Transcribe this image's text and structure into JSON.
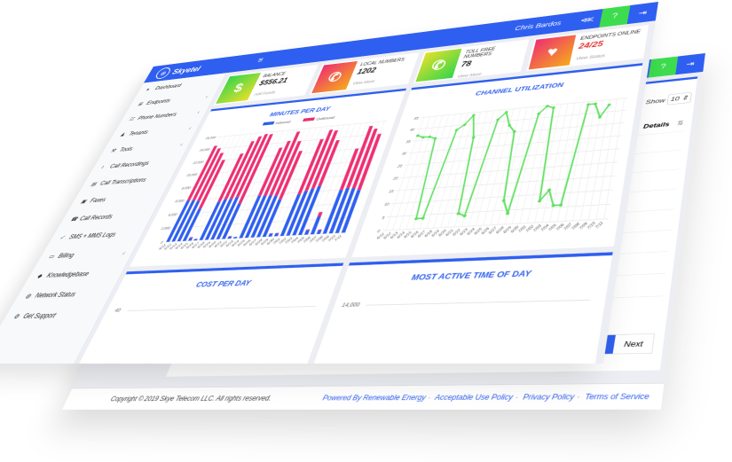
{
  "colors": {
    "brand": "#2f5ff0",
    "inbound": "#2f5ff0",
    "outbound": "#ee2f72",
    "line": "#5ee05e",
    "help": "#3ddc4f"
  },
  "header": {
    "logo": "Skyetel",
    "user": "Chris Bardos",
    "icons": [
      "menu-icon",
      "share-icon",
      "help-icon",
      "logout-icon"
    ],
    "help_label": "?"
  },
  "sidebar": {
    "items": [
      {
        "label": "Dashboard",
        "icon": "▸",
        "chevron": false
      },
      {
        "label": "Endpoints",
        "icon": "⊞",
        "chevron": true
      },
      {
        "label": "Phone Numbers",
        "icon": "☷",
        "chevron": true
      },
      {
        "label": "Tenants",
        "icon": "♟",
        "chevron": true
      },
      {
        "label": "Tools",
        "icon": "⚒",
        "chevron": true
      },
      {
        "label": "Call Recordings",
        "icon": "♪",
        "chevron": false
      },
      {
        "label": "Call Transcriptions",
        "icon": "▤",
        "chevron": false
      },
      {
        "label": "Faxes",
        "icon": "▣",
        "chevron": false
      },
      {
        "label": "Call Records",
        "icon": "☎",
        "chevron": false
      },
      {
        "label": "SMS + MMS Logs",
        "icon": "✓",
        "chevron": false
      },
      {
        "label": "Billing",
        "icon": "▭",
        "chevron": true
      },
      {
        "label": "Knowledgebase",
        "icon": "◆",
        "chevron": false
      },
      {
        "label": "Network Status",
        "icon": "◍",
        "chevron": false
      },
      {
        "label": "Get Support",
        "icon": "⚙",
        "chevron": false
      }
    ]
  },
  "stats": [
    {
      "label": "Balance",
      "value": "$556.21",
      "link": "Add Funds",
      "icon": "$",
      "gradient": [
        "#35d64a",
        "#e6e02a"
      ]
    },
    {
      "label": "Local Numbers",
      "value": "1202",
      "link": "View More",
      "icon": "✆",
      "gradient": [
        "#ee2f72",
        "#f6a91c"
      ]
    },
    {
      "label": "Toll Free Numbers",
      "value": "78",
      "link": "View More",
      "icon": "✆",
      "gradient": [
        "#e6e02a",
        "#35d64a"
      ]
    },
    {
      "label": "Endpoints Online",
      "value": "24/25",
      "link": "View Status",
      "icon": "♥",
      "gradient": [
        "#ee2f72",
        "#f6a91c"
      ],
      "value_color": "#e8322e"
    }
  ],
  "chart_data": [
    {
      "type": "bar",
      "stacked": true,
      "title": "MINUTES PER DAY",
      "legend": "top",
      "categories": [
        "6/11",
        "6/12",
        "6/13",
        "6/14",
        "6/15",
        "6/16",
        "6/17",
        "6/18",
        "6/19",
        "6/20",
        "6/21",
        "6/22",
        "6/23",
        "6/24",
        "6/25",
        "6/26",
        "6/27",
        "6/28",
        "6/29",
        "6/30",
        "7/01",
        "7/02",
        "7/03",
        "7/04",
        "7/05",
        "7/06",
        "7/07",
        "7/08",
        "7/09",
        "7/10",
        "7/11"
      ],
      "ylim": [
        0,
        16000
      ],
      "yticks": [
        "0",
        "2,000",
        "4,000",
        "6,000",
        "8,000",
        "10,000",
        "12,000",
        "14,000",
        "16,000"
      ],
      "grid": true,
      "series": [
        {
          "name": "Inbound",
          "values": [
            6000,
            6000,
            5800,
            4600,
            400,
            200,
            5500,
            5800,
            5800,
            6000,
            5000,
            300,
            200,
            6000,
            5900,
            5900,
            5800,
            5200,
            400,
            400,
            5800,
            6200,
            6500,
            6800,
            600,
            2400,
            500,
            6000,
            6200,
            6100,
            5800
          ]
        },
        {
          "name": "Outbound",
          "values": [
            8500,
            8000,
            7400,
            7400,
            100,
            0,
            7300,
            8900,
            9600,
            9700,
            10600,
            50,
            0,
            7200,
            8300,
            9700,
            8200,
            7200,
            50,
            50,
            8200,
            9200,
            8700,
            6800,
            100,
            600,
            100,
            6000,
            9200,
            8800,
            8200
          ]
        }
      ]
    },
    {
      "type": "line",
      "title": "CHANNEL UTILIZATION",
      "categories": [
        "6/11",
        "6/12",
        "6/13",
        "6/14",
        "6/15",
        "6/16",
        "6/17",
        "6/18",
        "6/19",
        "6/20",
        "6/21",
        "6/22",
        "6/23",
        "6/24",
        "6/25",
        "6/26",
        "6/27",
        "6/28",
        "6/29",
        "6/30",
        "7/01",
        "7/02",
        "7/03",
        "7/04",
        "7/05",
        "7/06",
        "7/07",
        "7/08",
        "7/09",
        "7/10",
        "7/11"
      ],
      "ylim": [
        0,
        45
      ],
      "yticks": [
        "0",
        "5",
        "10",
        "15",
        "20",
        "25",
        "30",
        "35",
        "40",
        "45"
      ],
      "grid": true,
      "values": [
        39,
        38,
        38,
        37,
        4,
        4,
        40,
        42,
        46,
        36,
        5,
        4,
        43,
        46,
        40,
        37,
        9,
        4,
        44,
        47,
        46,
        8,
        12,
        6,
        6,
        46,
        46,
        40,
        45,
        null,
        null
      ]
    },
    {
      "type": "bar",
      "title": "COST PER DAY",
      "yticks": [
        "40"
      ]
    },
    {
      "type": "bar",
      "title": "MOST ACTIVE TIME OF DAY",
      "yticks": [
        "14,000"
      ]
    }
  ],
  "back": {
    "show_label": "Show",
    "show_value": "10",
    "column_header": "Details",
    "sort_icon": "⇅",
    "pager": {
      "current": "1",
      "next": "Next"
    }
  },
  "footer": {
    "copyright": "Copyright © 2019 Skye Telecom LLC. All rights reserved.",
    "links": [
      "Powered By Renewable Energy",
      "Acceptable Use Policy",
      "Privacy Policy",
      "Terms of Service"
    ]
  }
}
